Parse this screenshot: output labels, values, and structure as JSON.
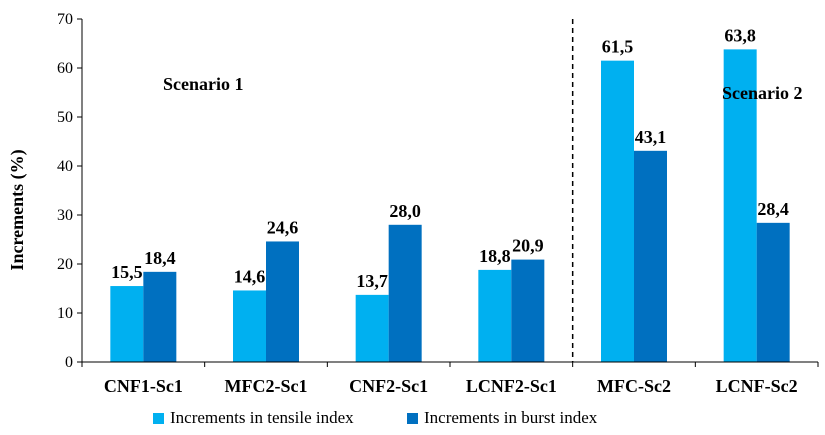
{
  "chart_data": {
    "type": "bar",
    "title": "",
    "xlabel": "",
    "ylabel": "Increments (%)",
    "ylim": [
      0,
      70
    ],
    "yticks": [
      "0",
      "10",
      "20",
      "30",
      "40",
      "50",
      "60",
      "70"
    ],
    "ytick_values": [
      0,
      10,
      20,
      30,
      40,
      50,
      60,
      70
    ],
    "categories": [
      "CNF1-Sc1",
      "MFC2-Sc1",
      "CNF2-Sc1",
      "LCNF2-Sc1",
      "MFC-Sc2",
      "LCNF-Sc2"
    ],
    "series": [
      {
        "name": "Increments in tensile index",
        "color": "#00b0f0",
        "values": [
          15.5,
          14.6,
          13.7,
          18.8,
          61.5,
          63.8
        ],
        "labels": [
          "15,5",
          "14,6",
          "13,7",
          "18,8",
          "61,5",
          "63,8"
        ]
      },
      {
        "name": "Increments in burst index",
        "color": "#0070c0",
        "values": [
          18.4,
          24.6,
          28.0,
          20.9,
          43.1,
          28.4
        ],
        "labels": [
          "18,4",
          "24,6",
          "28,0",
          "20,9",
          "43,1",
          "28,4"
        ]
      }
    ],
    "annotations": [
      {
        "text": "Scenario 1"
      },
      {
        "text": "Scenario 2"
      }
    ],
    "divider_after_category": 3,
    "legend_position": "bottom",
    "grid": false
  }
}
